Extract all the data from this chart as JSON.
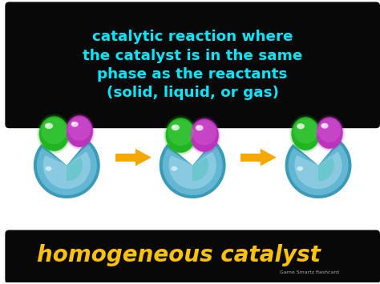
{
  "bg_color": "#ffffff",
  "top_box_color": "#080808",
  "top_text": "catalytic reaction where\nthe catalyst is in the same\nphase as the reactants\n(solid, liquid, or gas)",
  "top_text_color": "#00e8ff",
  "bottom_box_color": "#080808",
  "bottom_text": "homogeneous catalyst",
  "bottom_text_color": "#ffc200",
  "credit_text": "Game Smartz flashcard",
  "credit_color": "#aaaaaa",
  "arrow_color": "#f5a800",
  "green_main": "#22b522",
  "green_light": "#55dd55",
  "purple_main": "#bb33bb",
  "purple_light": "#dd66dd",
  "blue_dark": "#3a9ab8",
  "blue_mid": "#6bbdd8",
  "blue_light": "#b0ddf0",
  "blue_teal": "#40c0b0"
}
